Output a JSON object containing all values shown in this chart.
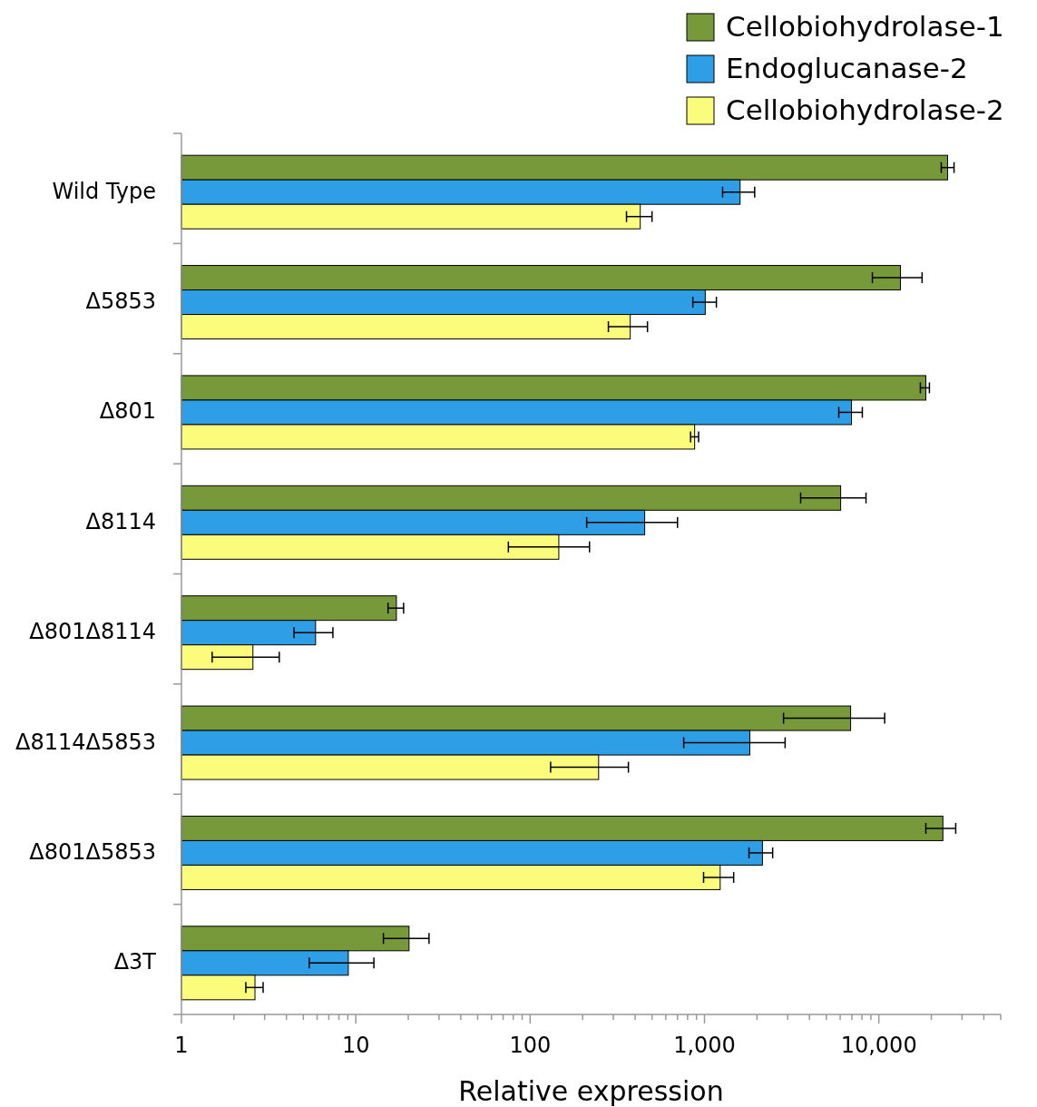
{
  "chart_data": {
    "type": "bar",
    "orientation": "horizontal",
    "log": "x",
    "xlabel": "Relative expression",
    "legend": "top right",
    "grid": false,
    "categories": [
      "Wild Type",
      "Δ5853",
      "Δ801",
      "Δ8114",
      "Δ801Δ8114",
      "Δ8114Δ5853",
      "Δ801Δ5853",
      "Δ3T"
    ],
    "xlim": [
      1,
      50000
    ],
    "xticks": [
      1,
      {
        "value": 2,
        "label": null
      },
      {
        "value": 3,
        "label": null
      },
      {
        "value": 4,
        "label": null
      },
      {
        "value": 5,
        "label": null
      },
      {
        "value": 6,
        "label": null
      },
      {
        "value": 7,
        "label": null
      },
      {
        "value": 8,
        "label": null
      },
      {
        "value": 9,
        "label": null
      },
      10,
      {
        "value": 20,
        "label": null
      },
      {
        "value": 30,
        "label": null
      },
      {
        "value": 40,
        "label": null
      },
      {
        "value": 50,
        "label": null
      },
      {
        "value": 60,
        "label": null
      },
      {
        "value": 70,
        "label": null
      },
      {
        "value": 80,
        "label": null
      },
      {
        "value": 90,
        "label": null
      },
      100,
      {
        "value": 200,
        "label": null
      },
      {
        "value": 300,
        "label": null
      },
      {
        "value": 400,
        "label": null
      },
      {
        "value": 500,
        "label": null
      },
      {
        "value": 600,
        "label": null
      },
      {
        "value": 700,
        "label": null
      },
      {
        "value": 800,
        "label": null
      },
      {
        "value": 900,
        "label": null
      },
      {
        "value": 1000,
        "label": "1,000"
      },
      {
        "value": 2000,
        "label": null
      },
      {
        "value": 3000,
        "label": null
      },
      {
        "value": 4000,
        "label": null
      },
      {
        "value": 5000,
        "label": null
      },
      {
        "value": 6000,
        "label": null
      },
      {
        "value": 7000,
        "label": null
      },
      {
        "value": 8000,
        "label": null
      },
      {
        "value": 9000,
        "label": null
      },
      {
        "value": 10000,
        "label": "10,000"
      },
      {
        "value": 20000,
        "label": null
      },
      {
        "value": 30000,
        "label": null
      },
      {
        "value": 40000,
        "label": null
      },
      {
        "value": 50000,
        "label": null
      }
    ],
    "series": [
      {
        "name": "Cellobiohydrolase-1",
        "color": "#77993a",
        "values": [
          24800,
          13300,
          18600,
          6040,
          17.1,
          6890,
          23300,
          20.2
        ],
        "errors": [
          [
            22800,
            27000
          ],
          [
            9180,
            17700
          ],
          [
            17300,
            19500
          ],
          [
            3560,
            8440
          ],
          [
            15.3,
            18.8
          ],
          [
            2840,
            10800
          ],
          [
            18600,
            27600
          ],
          [
            14.4,
            26.3
          ]
        ]
      },
      {
        "name": "Endoglucanase-2",
        "color": "#2e9fe6",
        "values": [
          1600,
          1010,
          6970,
          454,
          5.88,
          1820,
          2150,
          9.06
        ],
        "errors": [
          [
            1270,
            1940
          ],
          [
            857,
            1170
          ],
          [
            5890,
            8040
          ],
          [
            211,
            700
          ],
          [
            4.42,
            7.39
          ],
          [
            760,
            2900
          ],
          [
            1800,
            2460
          ],
          [
            5.41,
            12.7
          ]
        ]
      },
      {
        "name": "Cellobiohydrolase-2",
        "color": "#fcfc7c",
        "values": [
          428,
          375,
          878,
          146,
          2.57,
          247,
          1230,
          2.64
        ],
        "errors": [
          [
            357,
            500
          ],
          [
            281,
            471
          ],
          [
            832,
            925
          ],
          [
            75,
            219
          ],
          [
            1.5,
            3.64
          ],
          [
            131,
            366
          ],
          [
            988,
            1470
          ],
          [
            2.34,
            2.94
          ]
        ]
      }
    ]
  }
}
